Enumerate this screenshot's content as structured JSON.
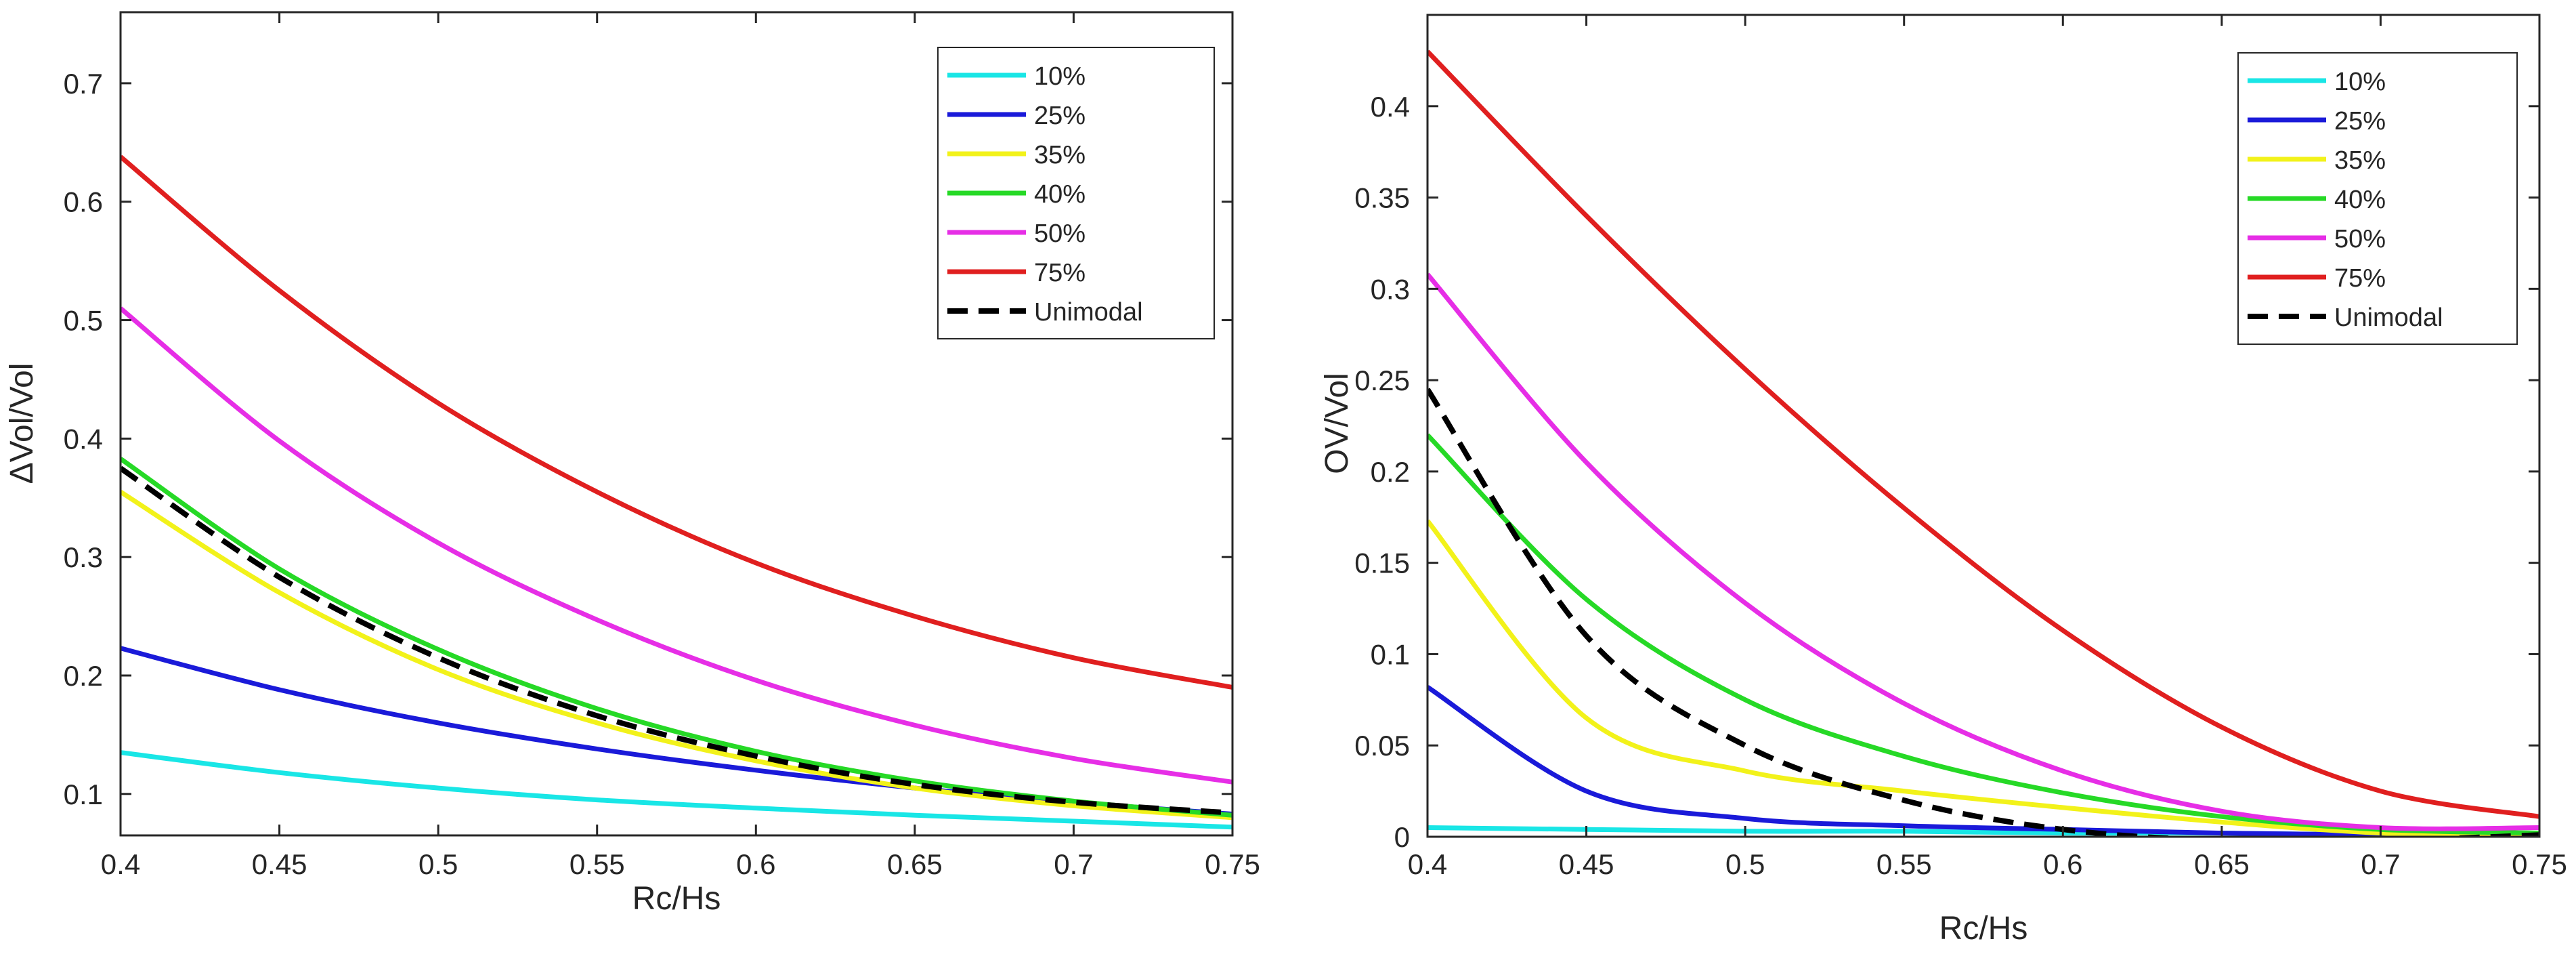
{
  "colors": {
    "10%": "#19e6e6",
    "25%": "#1a1ad9",
    "35%": "#f2f21a",
    "40%": "#26d926",
    "50%": "#e62ee6",
    "75%": "#e01f1f",
    "Unimodal": "#000000"
  },
  "chart_data": [
    {
      "type": "line",
      "title": "",
      "xlabel": "Rc/Hs",
      "ylabel": "ΔVol/Vol",
      "xlim": [
        0.4,
        0.75
      ],
      "ylim": [
        0.065,
        0.76
      ],
      "xticks": [
        0.4,
        0.45,
        0.5,
        0.55,
        0.6,
        0.65,
        0.7,
        0.75
      ],
      "xtick_labels": [
        "0.4",
        "0.45",
        "0.5",
        "0.55",
        "0.6",
        "0.65",
        "0.7",
        "0.75"
      ],
      "yticks": [
        0.1,
        0.2,
        0.3,
        0.4,
        0.5,
        0.6,
        0.7
      ],
      "ytick_labels": [
        "0.1",
        "0.2",
        "0.3",
        "0.4",
        "0.5",
        "0.6",
        "0.7"
      ],
      "legend_position": "top-right",
      "x": [
        0.4,
        0.45,
        0.5,
        0.55,
        0.6,
        0.65,
        0.7,
        0.75
      ],
      "series": [
        {
          "name": "10%",
          "style": "solid",
          "values": [
            0.135,
            0.118,
            0.105,
            0.095,
            0.088,
            0.082,
            0.077,
            0.072
          ]
        },
        {
          "name": "25%",
          "style": "solid",
          "values": [
            0.223,
            0.188,
            0.16,
            0.138,
            0.12,
            0.105,
            0.093,
            0.083
          ]
        },
        {
          "name": "35%",
          "style": "solid",
          "values": [
            0.355,
            0.27,
            0.205,
            0.16,
            0.128,
            0.105,
            0.09,
            0.08
          ]
        },
        {
          "name": "40%",
          "style": "solid",
          "values": [
            0.383,
            0.29,
            0.222,
            0.172,
            0.136,
            0.111,
            0.094,
            0.082
          ]
        },
        {
          "name": "50%",
          "style": "solid",
          "values": [
            0.51,
            0.398,
            0.312,
            0.247,
            0.196,
            0.158,
            0.13,
            0.11
          ]
        },
        {
          "name": "75%",
          "style": "solid",
          "values": [
            0.638,
            0.525,
            0.43,
            0.355,
            0.295,
            0.25,
            0.215,
            0.19
          ]
        },
        {
          "name": "Unimodal",
          "style": "dashed",
          "values": [
            0.375,
            0.283,
            0.215,
            0.166,
            0.132,
            0.108,
            0.093,
            0.084
          ]
        }
      ]
    },
    {
      "type": "line",
      "title": "",
      "xlabel": "Rc/Hs",
      "ylabel": "OV/Vol",
      "xlim": [
        0.4,
        0.75
      ],
      "ylim": [
        0,
        0.45
      ],
      "xticks": [
        0.4,
        0.45,
        0.5,
        0.55,
        0.6,
        0.65,
        0.7,
        0.75
      ],
      "xtick_labels": [
        "0.4",
        "0.45",
        "0.5",
        "0.55",
        "0.6",
        "0.65",
        "0.7",
        "0.75"
      ],
      "yticks": [
        0,
        0.05,
        0.1,
        0.15,
        0.2,
        0.25,
        0.3,
        0.35,
        0.4
      ],
      "ytick_labels": [
        "0",
        "0.05",
        "0.1",
        "0.15",
        "0.2",
        "0.25",
        "0.3",
        "0.35",
        "0.4"
      ],
      "legend_position": "top-right",
      "x": [
        0.4,
        0.45,
        0.5,
        0.55,
        0.6,
        0.65,
        0.7,
        0.75
      ],
      "series": [
        {
          "name": "10%",
          "style": "solid",
          "values": [
            0.005,
            0.004,
            0.003,
            0.003,
            0.002,
            0.002,
            0.001,
            0.001
          ]
        },
        {
          "name": "25%",
          "style": "solid",
          "values": [
            0.082,
            0.025,
            0.01,
            0.006,
            0.004,
            0.002,
            0.001,
            0.0
          ]
        },
        {
          "name": "35%",
          "style": "solid",
          "values": [
            0.173,
            0.065,
            0.036,
            0.025,
            0.016,
            0.008,
            0.002,
            0.0
          ]
        },
        {
          "name": "40%",
          "style": "solid",
          "values": [
            0.22,
            0.13,
            0.075,
            0.044,
            0.024,
            0.011,
            0.004,
            0.002
          ]
        },
        {
          "name": "50%",
          "style": "solid",
          "values": [
            0.308,
            0.205,
            0.128,
            0.073,
            0.036,
            0.014,
            0.005,
            0.005
          ]
        },
        {
          "name": "75%",
          "style": "solid",
          "values": [
            0.43,
            0.34,
            0.256,
            0.18,
            0.113,
            0.06,
            0.025,
            0.011
          ]
        },
        {
          "name": "Unimodal",
          "style": "dashed",
          "values": [
            0.245,
            0.11,
            0.05,
            0.02,
            0.004,
            -0.002,
            -0.002,
            0.001
          ]
        }
      ]
    }
  ]
}
